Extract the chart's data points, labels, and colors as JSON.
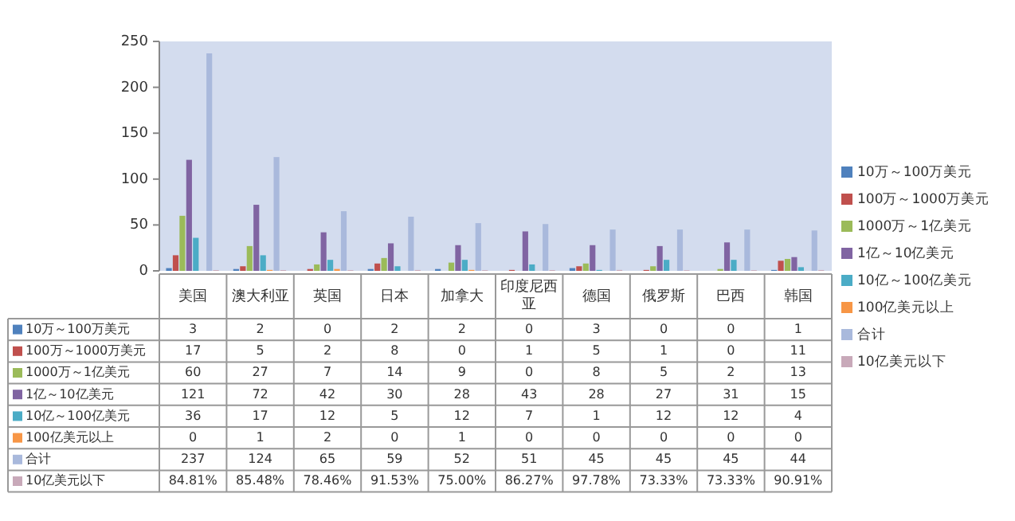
{
  "chart_data": {
    "type": "bar",
    "categories": [
      "美国",
      "澳大利亚",
      "英国",
      "日本",
      "加拿大",
      "印度尼西亚",
      "德国",
      "俄罗斯",
      "巴西",
      "韩国"
    ],
    "series": [
      {
        "name": "10万～100万美元",
        "color": "#4f81bd",
        "values": [
          3,
          2,
          0,
          2,
          2,
          0,
          3,
          0,
          0,
          1
        ]
      },
      {
        "name": "100万～1000万美元",
        "color": "#c0504d",
        "values": [
          17,
          5,
          2,
          8,
          0,
          1,
          5,
          1,
          0,
          11
        ]
      },
      {
        "name": "1000万～1亿美元",
        "color": "#9bbb59",
        "values": [
          60,
          27,
          7,
          14,
          9,
          0,
          8,
          5,
          2,
          13
        ]
      },
      {
        "name": "1亿～10亿美元",
        "color": "#8064a2",
        "values": [
          121,
          72,
          42,
          30,
          28,
          43,
          28,
          27,
          31,
          15
        ]
      },
      {
        "name": "10亿～100亿美元",
        "color": "#4bacc6",
        "values": [
          36,
          17,
          12,
          5,
          12,
          7,
          1,
          12,
          12,
          4
        ]
      },
      {
        "name": "100亿美元以上",
        "color": "#f79646",
        "values": [
          0,
          1,
          2,
          0,
          1,
          0,
          0,
          0,
          0,
          0
        ]
      },
      {
        "name": "合计",
        "color": "#a9b9dc",
        "values": [
          237,
          124,
          65,
          59,
          52,
          51,
          45,
          45,
          45,
          44
        ]
      },
      {
        "name": "10亿美元以下",
        "color": "#c8a9b9",
        "values": [
          0.8481,
          0.8548,
          0.7846,
          0.9153,
          0.75,
          0.8627,
          0.9778,
          0.7333,
          0.7333,
          0.9091
        ],
        "value_labels": [
          "84.81%",
          "85.48%",
          "78.46%",
          "91.53%",
          "75.00%",
          "86.27%",
          "97.78%",
          "73.33%",
          "73.33%",
          "90.91%"
        ]
      }
    ],
    "ylim": [
      0,
      250
    ],
    "yticks": [
      0,
      50,
      100,
      150,
      200,
      250
    ],
    "data_labels": true,
    "legend": "right",
    "grid": false
  }
}
